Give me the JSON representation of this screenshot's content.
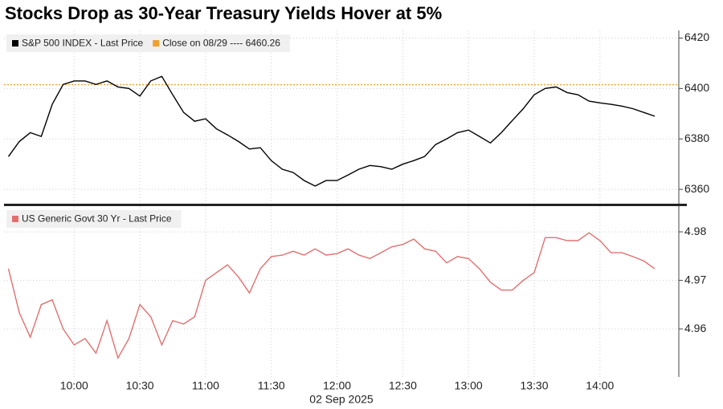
{
  "title": "Stocks Drop as 30-Year Treasury Yields Hover at 5%",
  "chart_data": [
    {
      "type": "line",
      "x": [
        570,
        575,
        580,
        585,
        590,
        595,
        600,
        605,
        610,
        615,
        620,
        625,
        630,
        635,
        640,
        645,
        650,
        655,
        660,
        665,
        670,
        675,
        680,
        685,
        690,
        695,
        700,
        705,
        710,
        715,
        720,
        725,
        730,
        735,
        740,
        745,
        750,
        755,
        760,
        765,
        770,
        775,
        780,
        785,
        790,
        795,
        800,
        805,
        810,
        815,
        820,
        825,
        830,
        835,
        840,
        845,
        850,
        855,
        860,
        865
      ],
      "series": [
        {
          "name": "S&P 500 INDEX - Last Price",
          "color": "#000000",
          "values": [
            6373,
            6379,
            6382.5,
            6381,
            6393.7,
            6401.6,
            6403,
            6403,
            6401.6,
            6403,
            6400.6,
            6400,
            6397,
            6403,
            6404.8,
            6397.5,
            6390.5,
            6387,
            6388,
            6384,
            6381.6,
            6379,
            6376,
            6376.5,
            6371.4,
            6368,
            6366.7,
            6363.5,
            6361.3,
            6363.5,
            6363.5,
            6365.7,
            6368,
            6369.5,
            6369,
            6368,
            6370,
            6371.4,
            6373,
            6377.8,
            6380,
            6382.5,
            6383.5,
            6381,
            6378.4,
            6382.5,
            6387.3,
            6392,
            6397.5,
            6400,
            6400.6,
            6398.4,
            6397.5,
            6395,
            6394.3,
            6393.7,
            6393,
            6392,
            6390.5,
            6389
          ]
        }
      ],
      "reference": {
        "name": "Close on 08/29 ---- 6460.26",
        "color": "#f0a030",
        "level": 6401.5
      },
      "xlim": [
        568,
        876
      ],
      "ylim": [
        6354,
        6423
      ],
      "yticks": [
        6360,
        6380,
        6400,
        6420
      ],
      "grid": true
    },
    {
      "type": "line",
      "x": [
        570,
        575,
        580,
        585,
        590,
        595,
        600,
        605,
        610,
        615,
        620,
        625,
        630,
        635,
        640,
        645,
        650,
        655,
        660,
        665,
        670,
        675,
        680,
        685,
        690,
        695,
        700,
        705,
        710,
        715,
        720,
        725,
        730,
        735,
        740,
        745,
        750,
        755,
        760,
        765,
        770,
        775,
        780,
        785,
        790,
        795,
        800,
        805,
        810,
        815,
        820,
        825,
        830,
        835,
        840,
        845,
        850,
        855,
        860,
        865
      ],
      "series": [
        {
          "name": "US Generic Govt 30 Yr - Last Price",
          "color": "#e07070",
          "values": [
            4.9724,
            4.9633,
            4.9583,
            4.965,
            4.966,
            4.96,
            4.9567,
            4.958,
            4.955,
            4.9617,
            4.954,
            4.958,
            4.965,
            4.9625,
            4.9567,
            4.9617,
            4.961,
            4.9625,
            4.97,
            4.9716,
            4.9732,
            4.9707,
            4.9674,
            4.9724,
            4.9749,
            4.9752,
            4.976,
            4.9752,
            4.9765,
            4.9752,
            4.9755,
            4.9765,
            4.9752,
            4.9745,
            4.9757,
            4.9769,
            4.9774,
            4.9785,
            4.9765,
            4.976,
            4.9736,
            4.9749,
            4.9745,
            4.9724,
            4.9696,
            4.968,
            4.968,
            4.97,
            4.9716,
            4.9788,
            4.9788,
            4.9782,
            4.9782,
            4.9798,
            4.9782,
            4.9757,
            4.9757,
            4.9749,
            4.974,
            4.9724
          ]
        }
      ],
      "xlim": [
        568,
        876
      ],
      "ylim": [
        4.9501,
        4.9853
      ],
      "yticks": [
        4.96,
        4.97,
        4.98
      ],
      "xticks": [
        {
          "value": 600,
          "label": "10:00"
        },
        {
          "value": 630,
          "label": "10:30"
        },
        {
          "value": 660,
          "label": "11:00"
        },
        {
          "value": 690,
          "label": "11:30"
        },
        {
          "value": 720,
          "label": "12:00"
        },
        {
          "value": 750,
          "label": "12:30"
        },
        {
          "value": 780,
          "label": "13:00"
        },
        {
          "value": 810,
          "label": "13:30"
        },
        {
          "value": 840,
          "label": "14:00"
        }
      ],
      "xlabel": "02 Sep 2025",
      "grid": true
    }
  ]
}
